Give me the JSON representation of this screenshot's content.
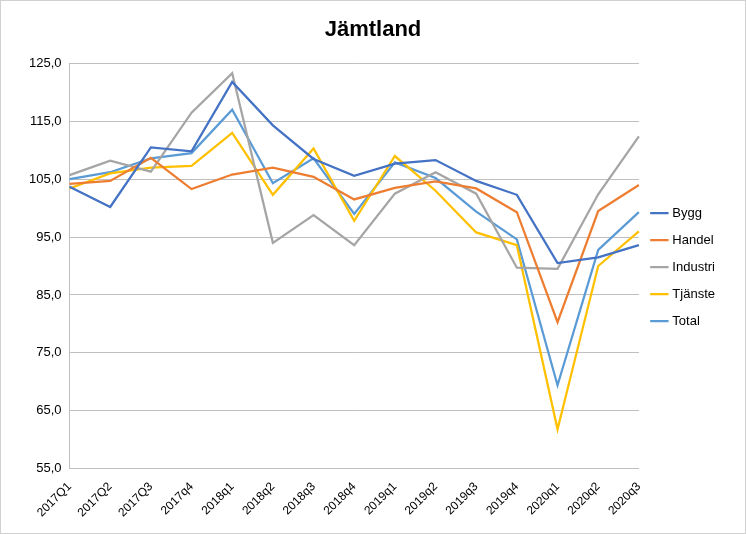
{
  "chart_data": {
    "type": "line",
    "title": "Jämtland",
    "categories": [
      "2017Q1",
      "2017Q2",
      "2017Q3",
      "2017q4",
      "2018q1",
      "2018q2",
      "2018q3",
      "2018q4",
      "2019q1",
      "2019q2",
      "2019q3",
      "2019q4",
      "2020q1",
      "2020q2",
      "2020q3"
    ],
    "series": [
      {
        "name": "Bygg",
        "color": "#4472c4",
        "values": [
          103.7,
          100.2,
          110.5,
          109.8,
          121.8,
          114.3,
          108.5,
          105.6,
          107.7,
          108.3,
          104.7,
          102.3,
          90.5,
          91.5,
          93.6
        ]
      },
      {
        "name": "Handel",
        "color": "#ed7d31",
        "values": [
          104.2,
          104.7,
          108.7,
          103.3,
          105.8,
          107.0,
          105.4,
          101.5,
          103.5,
          104.6,
          103.4,
          99.3,
          80.3,
          99.5,
          104.0
        ]
      },
      {
        "name": "Industri",
        "color": "#a5a5a5",
        "values": [
          105.7,
          108.2,
          106.3,
          116.5,
          123.3,
          94.0,
          98.8,
          93.6,
          102.5,
          106.2,
          102.5,
          89.7,
          89.5,
          102.4,
          112.4
        ]
      },
      {
        "name": "Tjänste",
        "color": "#ffc000",
        "values": [
          103.4,
          106.0,
          107.0,
          107.3,
          113.0,
          102.3,
          110.3,
          97.8,
          109.0,
          103.0,
          95.8,
          93.6,
          61.8,
          90.0,
          96.0
        ]
      },
      {
        "name": "Total",
        "color": "#5b9bd5",
        "values": [
          105.0,
          106.2,
          108.6,
          109.5,
          117.0,
          104.3,
          108.6,
          99.0,
          107.9,
          105.2,
          99.4,
          94.6,
          69.4,
          92.8,
          99.3
        ]
      }
    ],
    "ylim": [
      55,
      125
    ],
    "yticks": [
      {
        "value": 55,
        "label": "55,0"
      },
      {
        "value": 65,
        "label": "65,0"
      },
      {
        "value": 75,
        "label": "75,0"
      },
      {
        "value": 85,
        "label": "85,0"
      },
      {
        "value": 95,
        "label": "95,0"
      },
      {
        "value": 105,
        "label": "105,0"
      },
      {
        "value": 115,
        "label": "115,0"
      },
      {
        "value": 125,
        "label": "125,0"
      }
    ],
    "grid": true,
    "legend": "right"
  }
}
